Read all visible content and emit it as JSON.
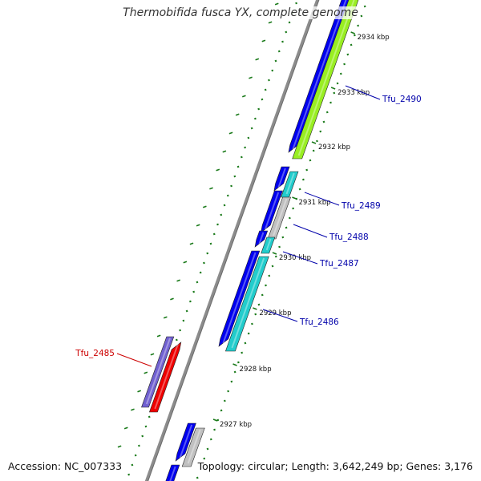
{
  "title": "Thermobifida fusca YX, complete genome",
  "footer": {
    "accession": "Accession: NC_007333",
    "summary": "Topology: circular; Length: 3,642,249 bp; Genes: 3,176"
  },
  "kbp_labels": [
    "2934 kbp",
    "2933 kbp",
    "2932 kbp",
    "2931 kbp",
    "2930 kbp",
    "2929 kbp",
    "2928 kbp",
    "2927 kbp"
  ],
  "gene_labels": [
    "Tfu_2490",
    "Tfu_2489",
    "Tfu_2488",
    "Tfu_2487",
    "Tfu_2486",
    "Tfu_2485"
  ],
  "colors": {
    "backbone": "#8c8c8c",
    "cds_forward": "#0000ee",
    "cds_reverse": "#0000ee",
    "lime": "#99ee22",
    "cyan": "#22cccc",
    "grey": "#c0c0c0",
    "slate": "#7060d0",
    "red": "#ee0000",
    "tick": "#1a7a1a",
    "label_blue": "#0000aa",
    "label_red": "#cc0000"
  }
}
